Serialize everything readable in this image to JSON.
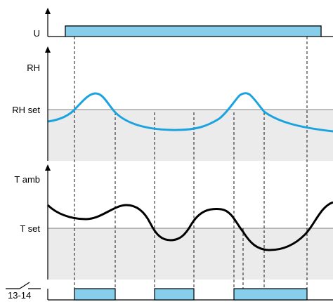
{
  "labels": {
    "u": "U",
    "rh": "RH",
    "rh_set": "RH set",
    "t_amb": "T amb",
    "t_set": "T set",
    "relay": "13-14"
  },
  "colors": {
    "axis": "#000000",
    "signal_fill": "#87CEEB",
    "signal_stroke": "#000000",
    "rh_curve": "#1AA3DF",
    "t_curve": "#000000",
    "shade": "#EBEBEB",
    "threshold_line": "#808080",
    "guide_line": "#000000"
  }
}
